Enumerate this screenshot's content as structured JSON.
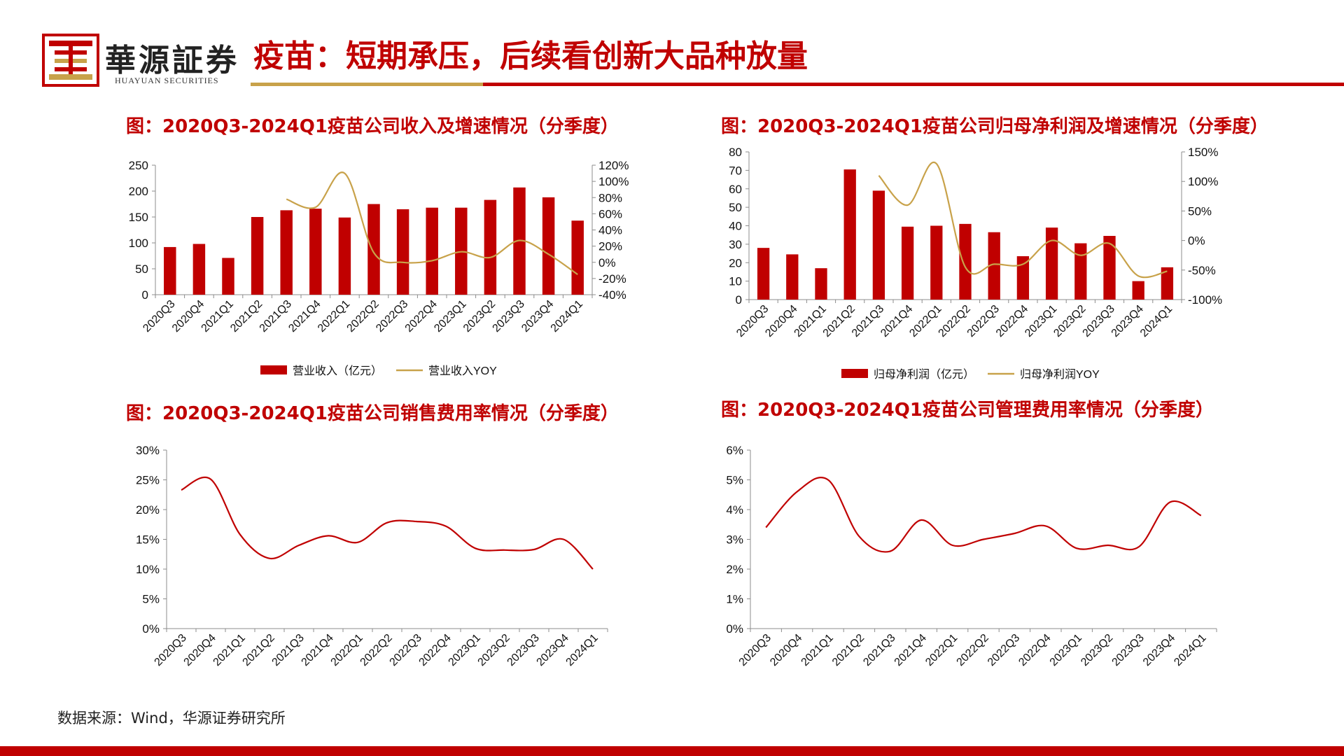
{
  "header": {
    "brand_cn": "華源証券",
    "brand_en": "HUAYUAN SECURITIES",
    "title": "疫苗：短期承压，后续看创新大品种放量",
    "logo_icon": "huayuan-seal-logo-icon",
    "accent": "#c00000",
    "gold": "#c8a24a"
  },
  "footnote": "数据来源：Wind，华源证券研究所",
  "chart_data": [
    {
      "id": "revenue",
      "type": "bar",
      "title": "图：2020Q3-2024Q1疫苗公司收入及增速情况（分季度）",
      "categories": [
        "2020Q3",
        "2020Q4",
        "2021Q1",
        "2021Q2",
        "2021Q3",
        "2021Q4",
        "2022Q1",
        "2022Q2",
        "2022Q3",
        "2022Q4",
        "2023Q1",
        "2023Q2",
        "2023Q3",
        "2023Q4",
        "2024Q1"
      ],
      "ylim": [
        0,
        250
      ],
      "yticks": [
        0,
        50,
        100,
        150,
        200,
        250
      ],
      "y2lim": [
        -40,
        120
      ],
      "y2ticks": [
        -40,
        -20,
        0,
        20,
        40,
        60,
        80,
        100,
        120
      ],
      "y2_format": "percent",
      "series": [
        {
          "name": "营业收入（亿元）",
          "kind": "bar",
          "axis": "left",
          "color": "#c00000",
          "values": [
            92,
            98,
            71,
            150,
            163,
            166,
            149,
            175,
            165,
            168,
            168,
            183,
            207,
            188,
            143
          ]
        },
        {
          "name": "营业收入YOY",
          "kind": "line",
          "axis": "right",
          "color": "#c8a24a",
          "values": [
            null,
            null,
            null,
            null,
            78,
            68,
            110,
            12,
            0,
            2,
            13,
            6,
            27,
            10,
            -15
          ]
        }
      ],
      "legend": "bottom"
    },
    {
      "id": "profit",
      "type": "bar",
      "title": "图：2020Q3-2024Q1疫苗公司归母净利润及增速情况（分季度）",
      "categories": [
        "2020Q3",
        "2020Q4",
        "2021Q1",
        "2021Q2",
        "2021Q3",
        "2021Q4",
        "2022Q1",
        "2022Q2",
        "2022Q3",
        "2022Q4",
        "2023Q1",
        "2023Q2",
        "2023Q3",
        "2023Q4",
        "2024Q1"
      ],
      "ylim": [
        0,
        80
      ],
      "yticks": [
        0,
        10,
        20,
        30,
        40,
        50,
        60,
        70,
        80
      ],
      "y2lim": [
        -100,
        150
      ],
      "y2ticks": [
        -100,
        -50,
        0,
        50,
        100,
        150
      ],
      "y2_format": "percent",
      "series": [
        {
          "name": "归母净利润（亿元）",
          "kind": "bar",
          "axis": "left",
          "color": "#c00000",
          "values": [
            28,
            24.5,
            17,
            70.5,
            59,
            39.5,
            40,
            41,
            36.5,
            23.5,
            39,
            30.5,
            34.5,
            10,
            17.5
          ]
        },
        {
          "name": "归母净利润YOY",
          "kind": "line",
          "axis": "right",
          "color": "#c8a24a",
          "values": [
            null,
            null,
            null,
            null,
            110,
            60,
            130,
            -45,
            -40,
            -40,
            0,
            -25,
            -5,
            -60,
            -52
          ]
        }
      ],
      "legend": "bottom"
    },
    {
      "id": "selling",
      "type": "line",
      "title": "图：2020Q3-2024Q1疫苗公司销售费用率情况（分季度）",
      "categories": [
        "2020Q3",
        "2020Q4",
        "2021Q1",
        "2021Q2",
        "2021Q3",
        "2021Q4",
        "2022Q1",
        "2022Q2",
        "2022Q3",
        "2022Q4",
        "2023Q1",
        "2023Q2",
        "2023Q3",
        "2023Q4",
        "2024Q1"
      ],
      "ylim": [
        0,
        30
      ],
      "yticks": [
        0,
        5,
        10,
        15,
        20,
        25,
        30
      ],
      "y_format": "percent",
      "series": [
        {
          "kind": "line",
          "color": "#c00000",
          "values": [
            23.3,
            25.1,
            15.8,
            11.8,
            14.0,
            15.6,
            14.5,
            17.8,
            18.0,
            17.2,
            13.5,
            13.2,
            13.3,
            15.0,
            10.0
          ]
        }
      ]
    },
    {
      "id": "admin",
      "type": "line",
      "title": "图：2020Q3-2024Q1疫苗公司管理费用率情况（分季度）",
      "categories": [
        "2020Q3",
        "2020Q4",
        "2021Q1",
        "2021Q2",
        "2021Q3",
        "2021Q4",
        "2022Q1",
        "2022Q2",
        "2022Q3",
        "2022Q4",
        "2023Q1",
        "2023Q2",
        "2023Q3",
        "2023Q4",
        "2024Q1"
      ],
      "ylim": [
        0,
        6
      ],
      "yticks": [
        0,
        1,
        2,
        3,
        4,
        5,
        6
      ],
      "y_format": "percent",
      "series": [
        {
          "kind": "line",
          "color": "#c00000",
          "values": [
            3.4,
            4.6,
            5.0,
            3.1,
            2.6,
            3.65,
            2.8,
            3.0,
            3.2,
            3.45,
            2.7,
            2.8,
            2.75,
            4.25,
            3.8
          ]
        }
      ]
    }
  ]
}
